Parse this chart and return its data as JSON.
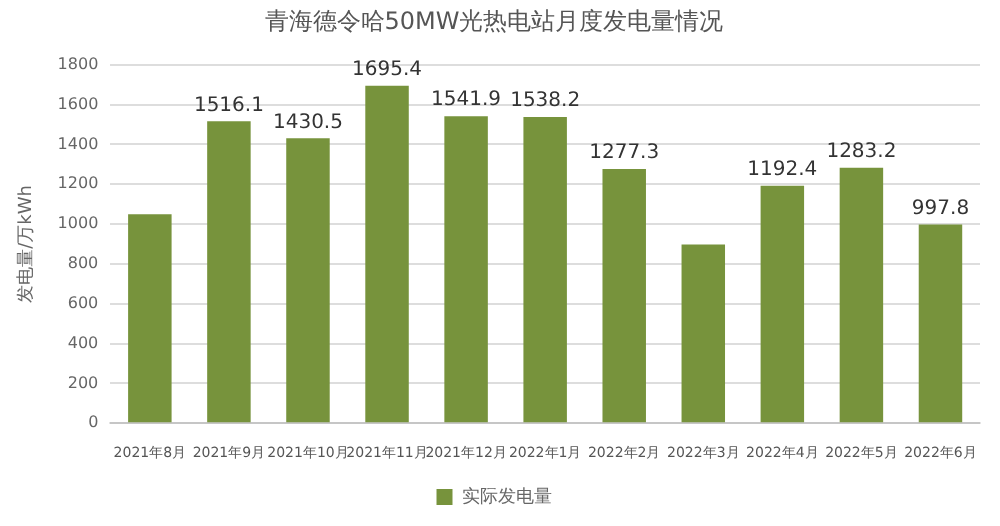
{
  "chart_data": {
    "type": "bar",
    "title": "青海德令哈50MW光热电站月度发电量情况",
    "ylabel": "发电量/万kWh",
    "categories": [
      "2021年8月",
      "2021年9月",
      "2021年10月",
      "2021年11月",
      "2021年12月",
      "2022年1月",
      "2022年2月",
      "2022年3月",
      "2022年4月",
      "2022年5月",
      "2022年6月"
    ],
    "series": [
      {
        "name": "实际发电量",
        "color": "#77933c",
        "values": [
          1050,
          1516.1,
          1430.5,
          1695.4,
          1541.9,
          1538.2,
          1277.3,
          897,
          1192.4,
          1283.2,
          997.8
        ],
        "value_labels": [
          null,
          "1516.1",
          "1430.5",
          "1695.4",
          "1541.9",
          "1538.2",
          "1277.3",
          null,
          "1192.4",
          "1283.2",
          "997.8"
        ]
      }
    ],
    "ylim": [
      0,
      1800
    ],
    "yticks": [
      0,
      200,
      400,
      600,
      800,
      1000,
      1200,
      1400,
      1600,
      1800
    ],
    "grid": "y",
    "legend": "bottom"
  }
}
